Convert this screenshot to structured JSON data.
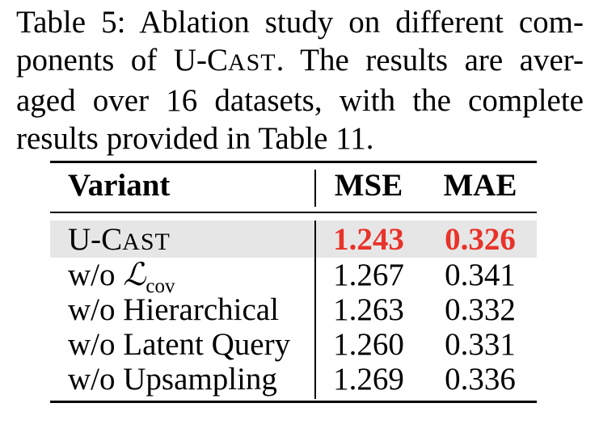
{
  "caption": {
    "line1": "Table 5: Ablation study on different com-",
    "line2_pre": "ponents of U-",
    "line2_C": "C",
    "line2_ast": "AST",
    "line2_post": ". The results are aver-",
    "line3": "aged over 16 datasets, with the complete",
    "line4": "results provided in Table 11."
  },
  "table": {
    "headers": {
      "variant": "Variant",
      "mse": "MSE",
      "mae": "MAE"
    },
    "rows": [
      {
        "variant_pre": "U-",
        "variant_C": "C",
        "variant_ast": "AST",
        "mse": "1.243",
        "mae": "0.326",
        "highlight": true
      },
      {
        "variant_pre": "w/o ",
        "variant_symbol": "ℒ",
        "variant_sub": "cov",
        "mse": "1.267",
        "mae": "0.341"
      },
      {
        "variant": "w/o Hierarchical",
        "mse": "1.263",
        "mae": "0.332"
      },
      {
        "variant": "w/o Latent Query",
        "mse": "1.260",
        "mae": "0.331"
      },
      {
        "variant": "w/o Upsampling",
        "mse": "1.269",
        "mae": "0.336"
      }
    ],
    "highlight_color": "#e6e6e6",
    "best_color": "#e8332a"
  }
}
